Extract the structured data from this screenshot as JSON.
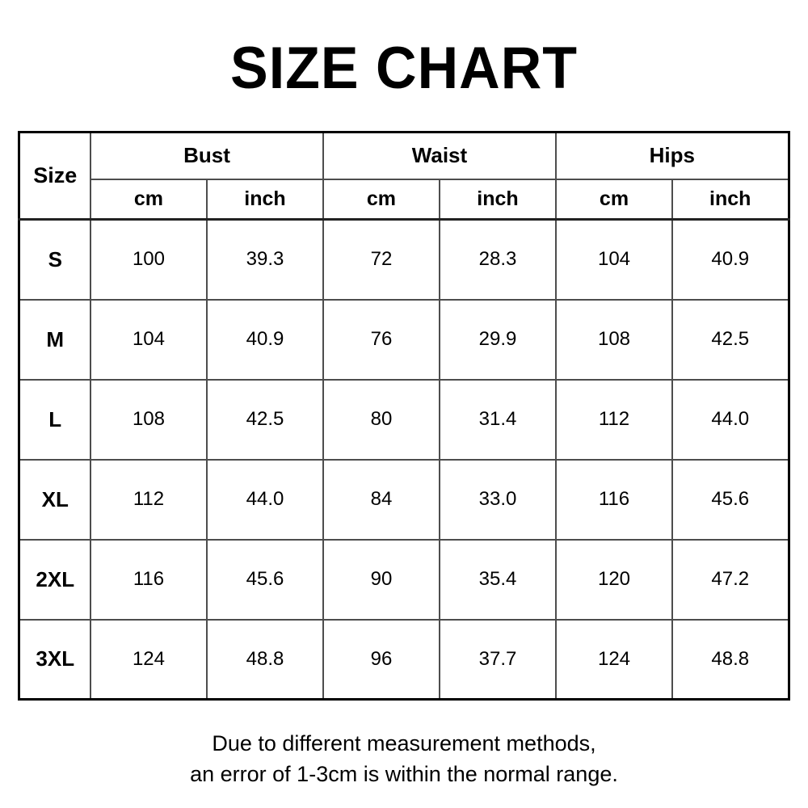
{
  "title": "SIZE CHART",
  "table": {
    "size_header": "Size",
    "groups": [
      {
        "label": "Bust",
        "units": [
          "cm",
          "inch"
        ]
      },
      {
        "label": "Waist",
        "units": [
          "cm",
          "inch"
        ]
      },
      {
        "label": "Hips",
        "units": [
          "cm",
          "inch"
        ]
      }
    ],
    "rows": [
      {
        "size": "S",
        "values": [
          "100",
          "39.3",
          "72",
          "28.3",
          "104",
          "40.9"
        ]
      },
      {
        "size": "M",
        "values": [
          "104",
          "40.9",
          "76",
          "29.9",
          "108",
          "42.5"
        ]
      },
      {
        "size": "L",
        "values": [
          "108",
          "42.5",
          "80",
          "31.4",
          "112",
          "44.0"
        ]
      },
      {
        "size": "XL",
        "values": [
          "112",
          "44.0",
          "84",
          "33.0",
          "116",
          "45.6"
        ]
      },
      {
        "size": "2XL",
        "values": [
          "116",
          "45.6",
          "90",
          "35.4",
          "120",
          "47.2"
        ]
      },
      {
        "size": "3XL",
        "values": [
          "124",
          "48.8",
          "96",
          "37.7",
          "124",
          "48.8"
        ]
      }
    ]
  },
  "footer": {
    "line1": "Due to different measurement methods,",
    "line2": "an error of 1-3cm is within the normal range."
  },
  "colors": {
    "header_bg": "#bfbfbf",
    "border_inner": "#4d4d4d",
    "border_outer": "#000000",
    "text": "#000000",
    "background": "#ffffff"
  },
  "chart_data": {
    "type": "table",
    "title": "SIZE CHART",
    "columns": [
      "Size",
      "Bust cm",
      "Bust inch",
      "Waist cm",
      "Waist inch",
      "Hips cm",
      "Hips inch"
    ],
    "rows": [
      [
        "S",
        100,
        39.3,
        72,
        28.3,
        104,
        40.9
      ],
      [
        "M",
        104,
        40.9,
        76,
        29.9,
        108,
        42.5
      ],
      [
        "L",
        108,
        42.5,
        80,
        31.4,
        112,
        44.0
      ],
      [
        "XL",
        112,
        44.0,
        84,
        33.0,
        116,
        45.6
      ],
      [
        "2XL",
        116,
        45.6,
        90,
        35.4,
        120,
        47.2
      ],
      [
        "3XL",
        124,
        48.8,
        96,
        37.7,
        124,
        48.8
      ]
    ],
    "note": "Due to different measurement methods, an error of 1-3cm is within the normal range."
  }
}
